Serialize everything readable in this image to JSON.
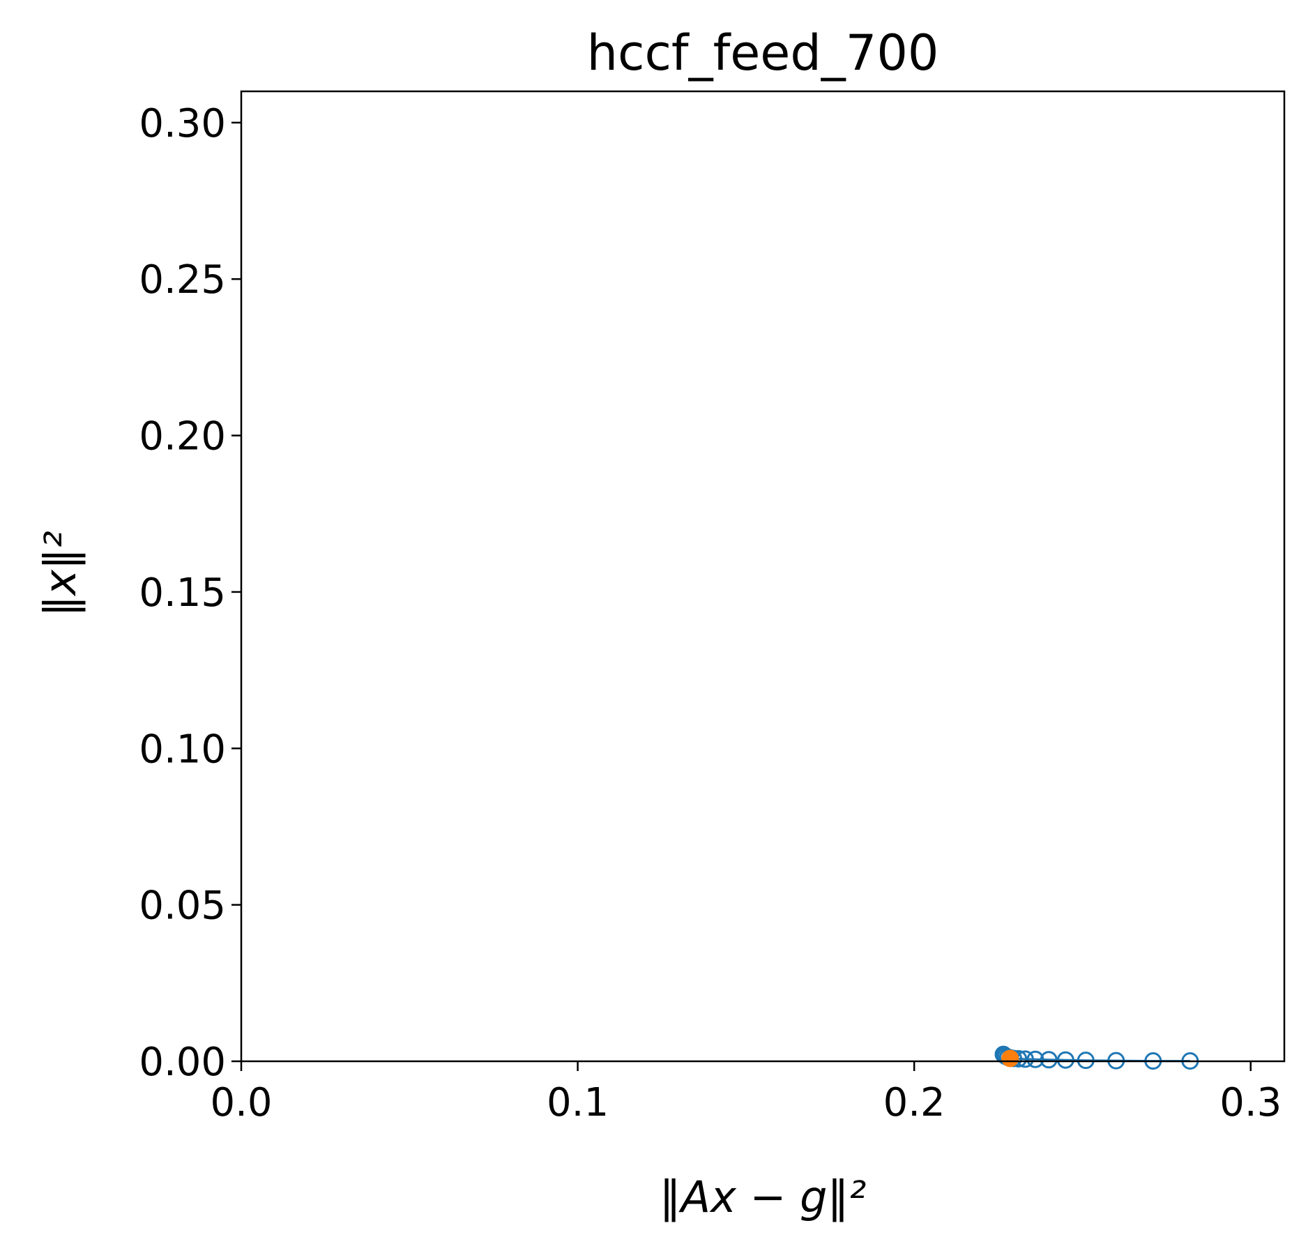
{
  "chart_data": {
    "type": "scatter",
    "title": "hccf_feed_700",
    "xlabel": "‖Ax − g‖²",
    "ylabel": "‖x‖²",
    "xlim": [
      0.0,
      0.31
    ],
    "ylim": [
      0.0,
      0.31
    ],
    "xticks": [
      0.0,
      0.1,
      0.2,
      0.3
    ],
    "xtick_labels": [
      "0.0",
      "0.1",
      "0.2",
      "0.3"
    ],
    "yticks": [
      0.0,
      0.05,
      0.1,
      0.15,
      0.2,
      0.25,
      0.3
    ],
    "ytick_labels": [
      "0.00",
      "0.05",
      "0.10",
      "0.15",
      "0.20",
      "0.25",
      "0.30"
    ],
    "grid": false,
    "series": [
      {
        "marker": "open-circle",
        "line": true,
        "color": "#1f77b4",
        "x": [
          0.2265,
          0.2268,
          0.2272,
          0.2278,
          0.2285,
          0.2295,
          0.231,
          0.233,
          0.236,
          0.24,
          0.245,
          0.251,
          0.26,
          0.271,
          0.282
        ],
        "y": [
          0.0022,
          0.0019,
          0.0016,
          0.0013,
          0.0011,
          0.0009,
          0.0008,
          0.0007,
          0.0006,
          0.0005,
          0.0004,
          0.0003,
          0.0002,
          0.0001,
          0.0001
        ]
      },
      {
        "marker": "filled-circle",
        "line": false,
        "color": "#ff7f0e",
        "x": [
          0.2285
        ],
        "y": [
          0.0009
        ]
      }
    ]
  }
}
